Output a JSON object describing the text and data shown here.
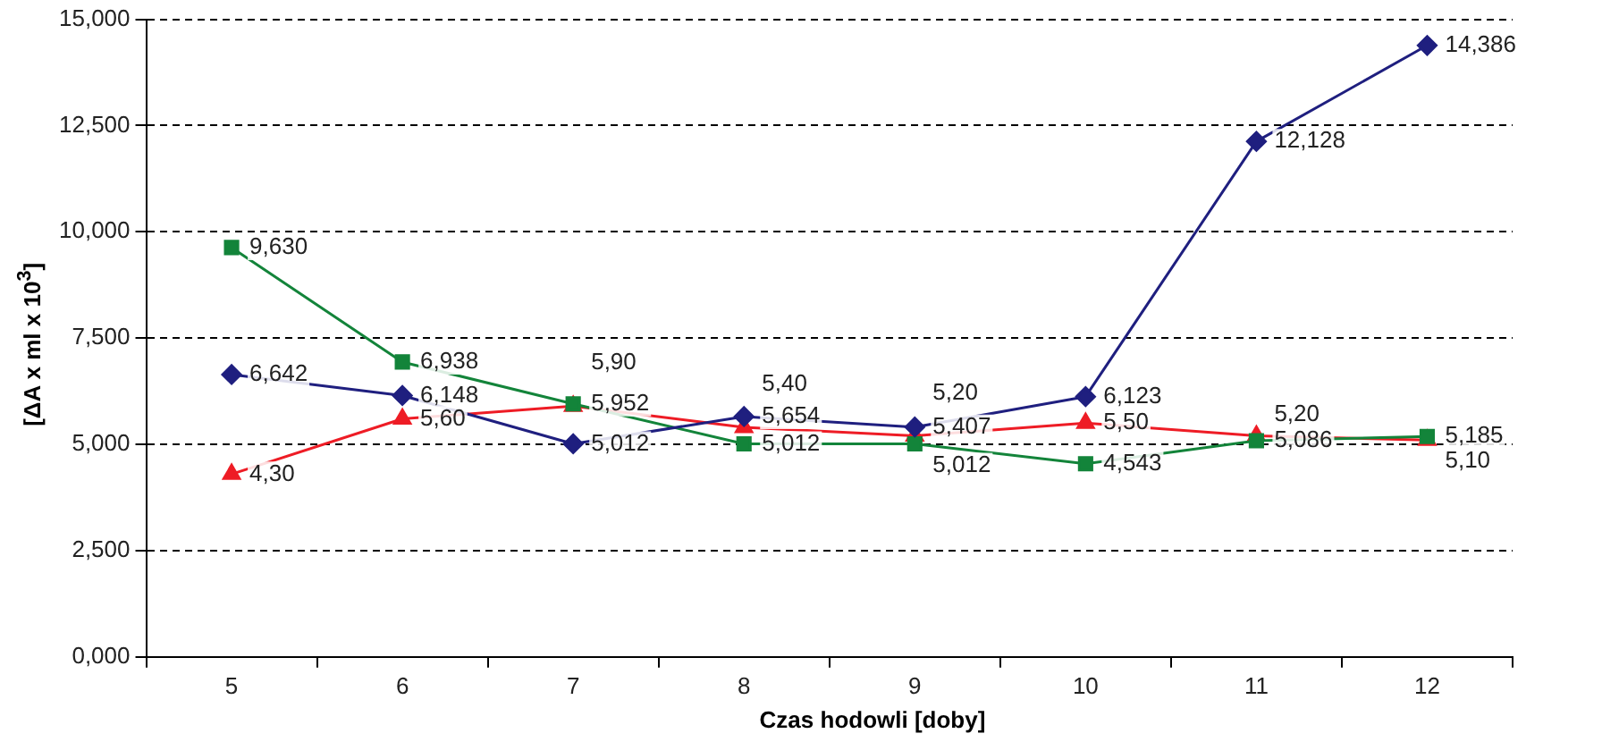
{
  "chart_data": {
    "type": "line",
    "xlabel": "Czas hodowli [doby]",
    "ylabel": "[ΔA x ml x 10$^{3}$]",
    "categories": [
      "5",
      "6",
      "7",
      "8",
      "9",
      "10",
      "11",
      "12"
    ],
    "ylim": [
      0,
      15
    ],
    "yticks": [
      {
        "value": 0,
        "label": "0,000"
      },
      {
        "value": 2.5,
        "label": "2,500"
      },
      {
        "value": 5,
        "label": "5,000"
      },
      {
        "value": 7.5,
        "label": "7,500"
      },
      {
        "value": 10,
        "label": "10,000"
      },
      {
        "value": 12.5,
        "label": "12,500"
      },
      {
        "value": 15,
        "label": "15,000"
      }
    ],
    "grid": "y",
    "legend": false,
    "line_style": "solid",
    "series": [
      {
        "color": "#1f1f7f",
        "marker": "diamond",
        "values": [
          6.642,
          6.148,
          5.012,
          5.654,
          5.407,
          6.123,
          12.128,
          14.386
        ],
        "value_labels": [
          "6,642",
          "6,148",
          "5,012",
          "5,654",
          "5,407",
          "6,123",
          "12,128",
          "14,386"
        ]
      },
      {
        "color": "#13843a",
        "marker": "square",
        "values": [
          9.63,
          6.938,
          5.952,
          5.012,
          5.012,
          4.543,
          5.086,
          5.185
        ],
        "value_labels": [
          "9,630",
          "6,938",
          "5,952",
          "5,012",
          "5,012",
          "4,543",
          "5,086",
          "5,185"
        ]
      },
      {
        "color": "#ee1c25",
        "marker": "triangle",
        "values": [
          4.3,
          5.6,
          5.9,
          5.4,
          5.2,
          5.5,
          5.2,
          5.1
        ],
        "value_labels": [
          "4,30",
          "5,60",
          "5,90",
          "5,40",
          "5,20",
          "5,50",
          "5,20",
          "5,10"
        ]
      }
    ]
  }
}
